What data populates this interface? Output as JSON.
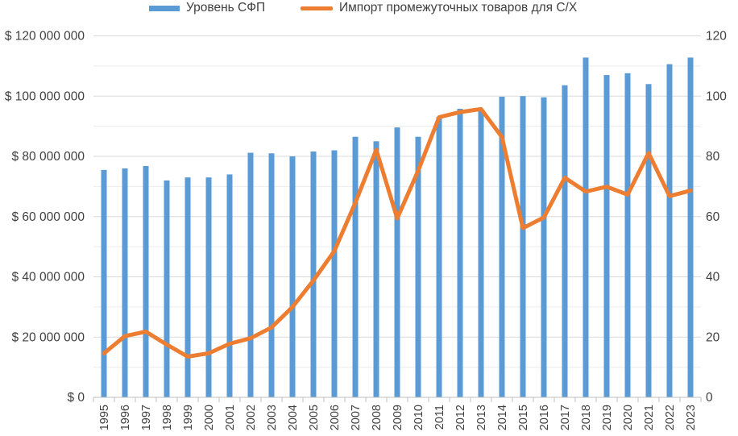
{
  "chart_data": {
    "type": "bar+line",
    "categories": [
      "1995",
      "1996",
      "1997",
      "1998",
      "1999",
      "2000",
      "2001",
      "2002",
      "2003",
      "2004",
      "2005",
      "2006",
      "2007",
      "2008",
      "2009",
      "2010",
      "2011",
      "2012",
      "2013",
      "2014",
      "2015",
      "2016",
      "2017",
      "2018",
      "2019",
      "2020",
      "2021",
      "2022",
      "2023"
    ],
    "series": [
      {
        "name": "Уровень СФП",
        "type": "bar",
        "axis": "left",
        "color": "#5B9BD5",
        "values": [
          75500000,
          76000000,
          76800000,
          72000000,
          73000000,
          73000000,
          74000000,
          81200000,
          81000000,
          80000000,
          81600000,
          82000000,
          86500000,
          85000000,
          89600000,
          86500000,
          93000000,
          95800000,
          95000000,
          99800000,
          100000000,
          99600000,
          103600000,
          112800000,
          107000000,
          107600000,
          104000000,
          110600000,
          112800000
        ]
      },
      {
        "name": "Импорт промежуточных товаров для С/Х",
        "type": "line",
        "axis": "right",
        "color": "#ED7D31",
        "values": [
          14.6,
          20.3,
          21.8,
          17.5,
          13.5,
          14.6,
          17.8,
          19.6,
          23.2,
          30.0,
          38.8,
          48.6,
          64.6,
          82.2,
          59.4,
          75.2,
          93.0,
          94.7,
          95.7,
          86.4,
          56.2,
          59.7,
          72.9,
          68.3,
          69.9,
          67.3,
          81.1,
          66.8,
          68.6
        ]
      }
    ],
    "y_left": {
      "min": 0,
      "max": 120000000,
      "step": 20000000,
      "tick_labels": [
        "$ 0",
        "$ 20 000 000",
        "$ 40 000 000",
        "$ 60 000 000",
        "$ 80 000 000",
        "$ 100 000 000",
        "$ 120 000 000"
      ]
    },
    "y_right": {
      "min": 0,
      "max": 120,
      "step": 20,
      "tick_labels": [
        "0",
        "20",
        "40",
        "60",
        "80",
        "100",
        "120"
      ]
    },
    "title": "",
    "xlabel": "",
    "ylabel": "",
    "grid": true,
    "legend_position": "top"
  }
}
